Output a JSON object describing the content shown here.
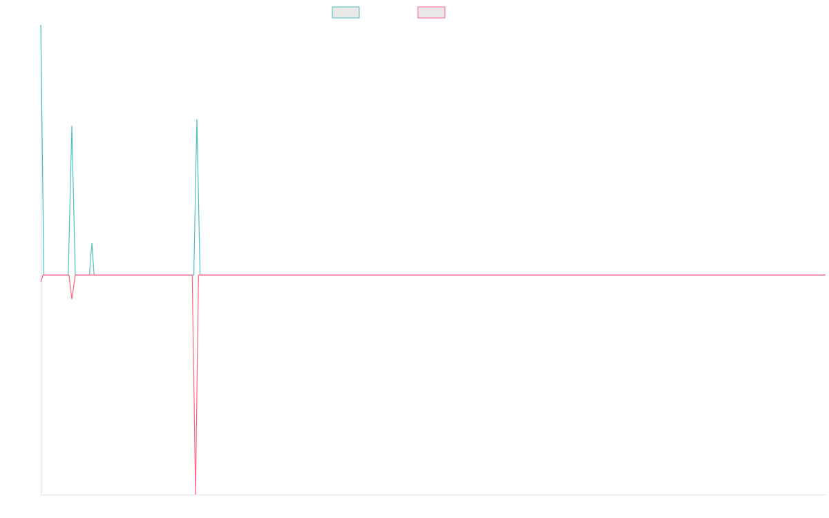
{
  "chart_data": {
    "type": "line",
    "xlim": [
      0,
      100
    ],
    "ylim": [
      -100,
      114
    ],
    "series": [
      {
        "color": "#4bc0c0",
        "x": [
          0,
          0.4,
          3.5,
          3.96,
          4.4,
          6.2,
          6.51,
          6.8,
          19.5,
          19.89,
          20.3,
          100
        ],
        "values": [
          114,
          0,
          0,
          68,
          0,
          0,
          14.5,
          0,
          0,
          71,
          0,
          0
        ]
      },
      {
        "color": "#ff6384",
        "x": [
          0,
          0.3,
          3.6,
          3.96,
          4.4,
          19.3,
          19.72,
          20.1,
          100
        ],
        "values": [
          -3,
          0,
          0,
          -11,
          0,
          0,
          -100,
          0,
          0
        ]
      }
    ]
  }
}
